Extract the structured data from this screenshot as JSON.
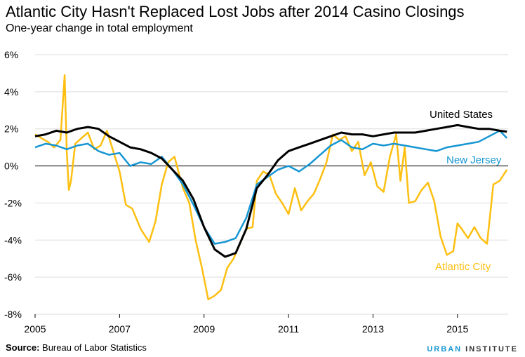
{
  "header": {
    "title": "Atlantic City Hasn't Replaced Lost Jobs after 2014 Casino Closings",
    "subtitle": "One-year change in total employment"
  },
  "footer": {
    "source_label": "Source:",
    "source_text": "Bureau of Labor Statistics",
    "logo_part1": "URBAN",
    "logo_part2": "INSTITUTE"
  },
  "colors": {
    "us": "#000000",
    "nj": "#1696d2",
    "ac": "#fdbf11",
    "grid": "#dedede",
    "zero": "#000000"
  },
  "chart_data": {
    "type": "line",
    "title": "Atlantic City Hasn't Replaced Lost Jobs after 2014 Casino Closings",
    "subtitle": "One-year change in total employment",
    "xlabel": "",
    "ylabel": "",
    "xlim": [
      2005,
      2016.2
    ],
    "ylim": [
      -8,
      6
    ],
    "yticks": [
      6,
      4,
      2,
      0,
      -2,
      -4,
      -6,
      -8
    ],
    "ytick_labels": [
      "6%",
      "4%",
      "2%",
      "0%",
      "-2%",
      "-4%",
      "-6%",
      "-8%"
    ],
    "xticks": [
      2005,
      2007,
      2009,
      2011,
      2013,
      2015
    ],
    "xtick_labels": [
      "2005",
      "2007",
      "2009",
      "2011",
      "2013",
      "2015"
    ],
    "grid": true,
    "series": [
      {
        "name": "United States",
        "color_key": "us",
        "x": [
          2005.0,
          2005.25,
          2005.5,
          2005.75,
          2006.0,
          2006.25,
          2006.5,
          2006.75,
          2007.0,
          2007.25,
          2007.5,
          2007.75,
          2008.0,
          2008.25,
          2008.5,
          2008.75,
          2009.0,
          2009.25,
          2009.5,
          2009.75,
          2010.0,
          2010.25,
          2010.5,
          2010.75,
          2011.0,
          2011.25,
          2011.5,
          2011.75,
          2012.0,
          2012.25,
          2012.5,
          2012.75,
          2013.0,
          2013.25,
          2013.5,
          2013.75,
          2014.0,
          2014.25,
          2014.5,
          2014.75,
          2015.0,
          2015.25,
          2015.5,
          2015.75,
          2016.0,
          2016.17
        ],
        "values": [
          1.6,
          1.7,
          1.9,
          1.8,
          2.0,
          2.1,
          2.0,
          1.6,
          1.3,
          1.0,
          0.9,
          0.7,
          0.4,
          -0.2,
          -0.8,
          -1.8,
          -3.3,
          -4.5,
          -4.9,
          -4.7,
          -3.4,
          -1.2,
          -0.5,
          0.3,
          0.8,
          1.0,
          1.2,
          1.4,
          1.6,
          1.8,
          1.7,
          1.7,
          1.6,
          1.7,
          1.8,
          1.8,
          1.8,
          1.9,
          2.0,
          2.1,
          2.2,
          2.1,
          2.0,
          2.0,
          1.9,
          1.85
        ]
      },
      {
        "name": "New Jersey",
        "color_key": "nj",
        "x": [
          2005.0,
          2005.25,
          2005.5,
          2005.75,
          2006.0,
          2006.25,
          2006.5,
          2006.75,
          2007.0,
          2007.25,
          2007.5,
          2007.75,
          2008.0,
          2008.25,
          2008.5,
          2008.75,
          2009.0,
          2009.25,
          2009.5,
          2009.75,
          2010.0,
          2010.25,
          2010.5,
          2010.75,
          2011.0,
          2011.25,
          2011.5,
          2011.75,
          2012.0,
          2012.25,
          2012.5,
          2012.75,
          2013.0,
          2013.25,
          2013.5,
          2013.75,
          2014.0,
          2014.25,
          2014.5,
          2014.75,
          2015.0,
          2015.25,
          2015.5,
          2015.75,
          2016.0,
          2016.17
        ],
        "values": [
          1.0,
          1.2,
          1.1,
          0.9,
          1.1,
          1.2,
          0.8,
          0.6,
          0.7,
          0.0,
          0.2,
          0.1,
          0.5,
          -0.2,
          -1.0,
          -2.1,
          -3.3,
          -4.2,
          -4.1,
          -3.9,
          -2.8,
          -1.0,
          -0.6,
          -0.2,
          0.0,
          -0.3,
          0.1,
          0.6,
          1.1,
          1.4,
          1.0,
          0.9,
          1.2,
          1.1,
          1.2,
          1.1,
          1.0,
          0.9,
          0.8,
          1.0,
          1.1,
          1.2,
          1.3,
          1.6,
          1.9,
          1.5
        ]
      },
      {
        "name": "Atlantic City",
        "color_key": "ac",
        "x": [
          2005.0,
          2005.15,
          2005.3,
          2005.45,
          2005.6,
          2005.7,
          2005.75,
          2005.8,
          2005.85,
          2005.95,
          2006.1,
          2006.25,
          2006.4,
          2006.55,
          2006.7,
          2006.85,
          2007.0,
          2007.15,
          2007.3,
          2007.5,
          2007.7,
          2007.85,
          2008.0,
          2008.15,
          2008.3,
          2008.5,
          2008.65,
          2008.8,
          2008.95,
          2009.1,
          2009.25,
          2009.4,
          2009.55,
          2009.7,
          2009.85,
          2010.0,
          2010.15,
          2010.25,
          2010.4,
          2010.55,
          2010.7,
          2010.85,
          2011.0,
          2011.15,
          2011.3,
          2011.45,
          2011.6,
          2011.75,
          2011.9,
          2012.05,
          2012.2,
          2012.35,
          2012.5,
          2012.65,
          2012.8,
          2012.95,
          2013.1,
          2013.25,
          2013.4,
          2013.55,
          2013.65,
          2013.75,
          2013.85,
          2014.0,
          2014.15,
          2014.3,
          2014.45,
          2014.6,
          2014.75,
          2014.9,
          2015.0,
          2015.1,
          2015.25,
          2015.4,
          2015.55,
          2015.7,
          2015.85,
          2016.0,
          2016.17
        ],
        "values": [
          1.7,
          1.5,
          1.3,
          1.0,
          1.4,
          4.9,
          0.8,
          -1.3,
          -0.8,
          1.2,
          1.5,
          1.8,
          0.9,
          1.1,
          1.9,
          0.8,
          -0.3,
          -2.1,
          -2.3,
          -3.4,
          -4.1,
          -3.0,
          -1.0,
          0.2,
          0.5,
          -1.2,
          -2.0,
          -4.0,
          -5.5,
          -7.2,
          -7.0,
          -6.7,
          -5.5,
          -5.0,
          -4.2,
          -3.4,
          -3.3,
          -0.8,
          -0.3,
          -0.5,
          -1.5,
          -2.0,
          -2.6,
          -1.2,
          -2.4,
          -1.9,
          -1.5,
          -0.7,
          0.2,
          1.7,
          1.4,
          1.6,
          0.8,
          1.3,
          -0.5,
          0.2,
          -1.1,
          -1.4,
          0.5,
          1.7,
          -0.8,
          1.0,
          -2.0,
          -1.9,
          -1.3,
          -0.9,
          -1.9,
          -3.8,
          -4.8,
          -4.6,
          -3.1,
          -3.4,
          -3.9,
          -3.3,
          -3.9,
          -4.2,
          -1.0,
          -0.8,
          -0.2
        ]
      }
    ],
    "annotations": [
      {
        "text": "United States",
        "series": "United States"
      },
      {
        "text": "New Jersey",
        "series": "New Jersey"
      },
      {
        "text": "Atlantic City",
        "series": "Atlantic City"
      }
    ]
  }
}
